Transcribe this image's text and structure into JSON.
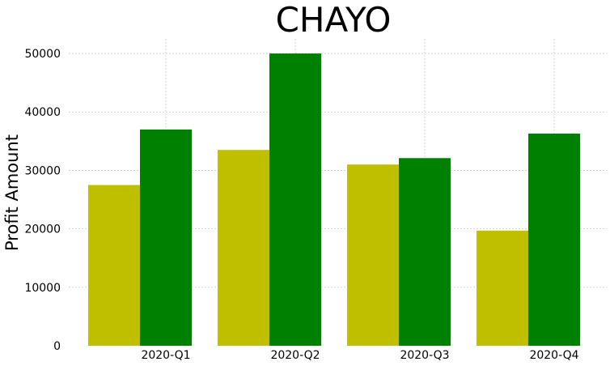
{
  "chart_data": {
    "type": "bar",
    "title": "CHAYO",
    "xlabel": "",
    "ylabel": "Profit Amount",
    "categories": [
      "2020-Q1",
      "2020-Q2",
      "2020-Q3",
      "2020-Q4"
    ],
    "series": [
      {
        "values": [
          27500,
          33500,
          31000,
          19700
        ],
        "color": "#bfbf00"
      },
      {
        "values": [
          37000,
          50000,
          32100,
          36300
        ],
        "color": "#008000"
      }
    ],
    "ylim": [
      0,
      52500
    ],
    "yticks": [
      0,
      10000,
      20000,
      30000,
      40000,
      50000
    ],
    "grid": true,
    "legend": "none"
  }
}
